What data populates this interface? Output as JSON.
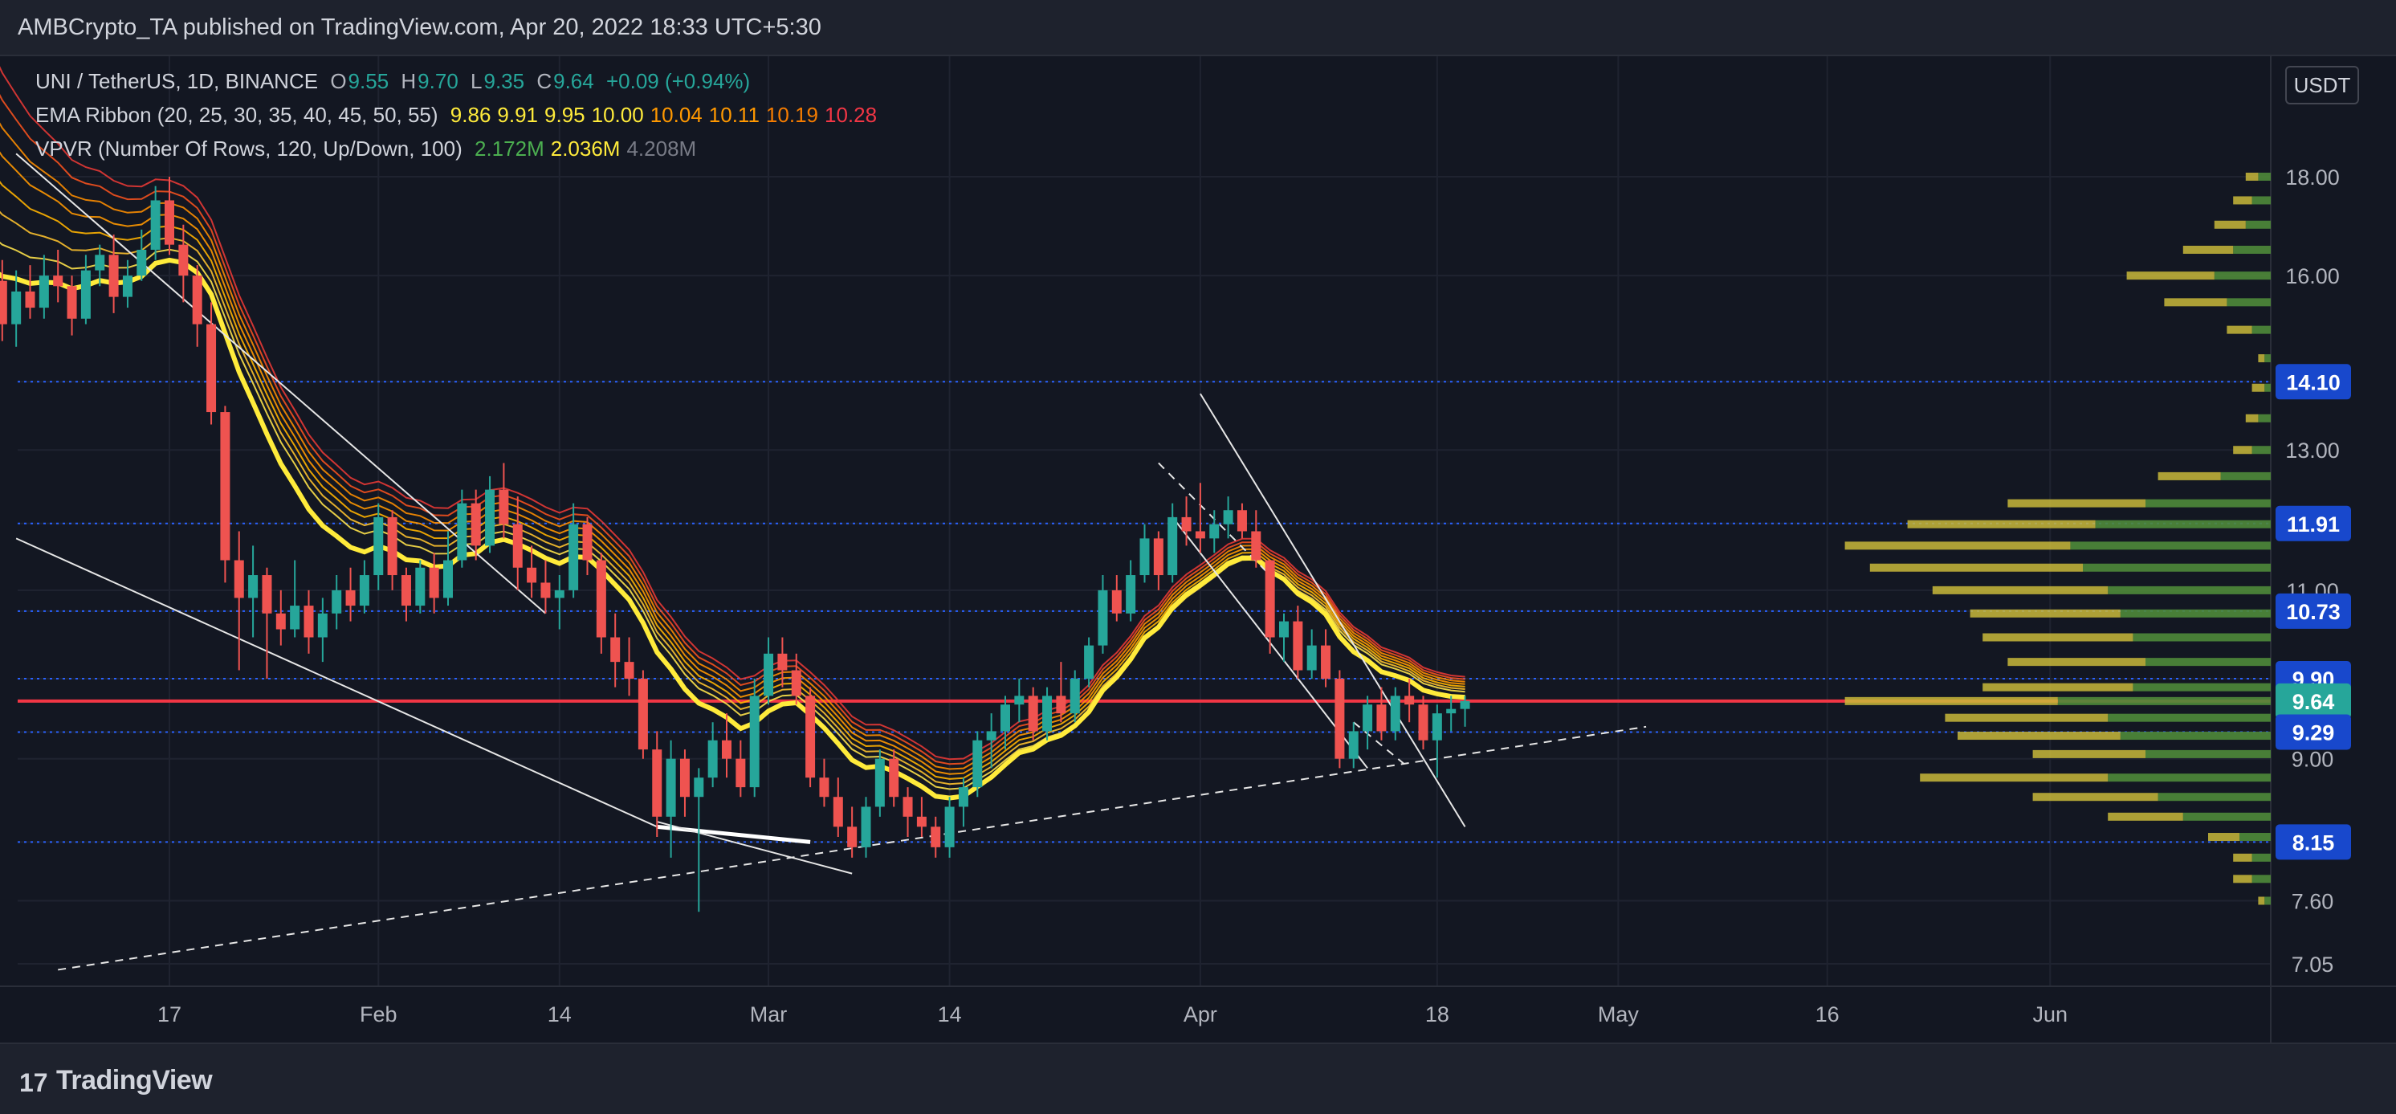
{
  "header": {
    "text": "AMBCrypto_TA published on TradingView.com, Apr 20, 2022 18:33 UTC+5:30"
  },
  "legend": {
    "symbol": "UNI / TetherUS, 1D, BINANCE",
    "ohlc": {
      "O": "9.55",
      "H": "9.70",
      "L": "9.35",
      "C": "9.64",
      "change": "+0.09 (+0.94%)"
    },
    "ema": {
      "label": "EMA Ribbon (20, 25, 30, 35, 40, 45, 50, 55)",
      "values": [
        "9.86",
        "9.91",
        "9.95",
        "10.00",
        "10.04",
        "10.11",
        "10.19",
        "10.28"
      ],
      "colors": [
        "#ffeb3b",
        "#ffeb3b",
        "#ffeb3b",
        "#ffeb3b",
        "#ff9800",
        "#ff9800",
        "#f57c00",
        "#f23645"
      ]
    },
    "vpvr": {
      "label": "VPVR (Number Of Rows, 120, Up/Down, 100)",
      "values": [
        "2.172M",
        "2.036M",
        "4.208M"
      ],
      "colors": [
        "#4caf50",
        "#ffeb3b",
        "#787b86"
      ]
    }
  },
  "currency": "USDT",
  "footer": {
    "logo": "17",
    "brand": "TradingView"
  },
  "chart_data": {
    "type": "candlestick",
    "y_axis": {
      "ticks": [
        "18.00",
        "16.00",
        "14.10",
        "13.00",
        "11.91",
        "11.00",
        "10.73",
        "9.90",
        "9.64",
        "9.29",
        "9.00",
        "8.15",
        "7.60",
        "7.05"
      ],
      "scale": "log",
      "range": [
        6.8,
        19.5
      ]
    },
    "x_axis": {
      "ticks": [
        "17",
        "Feb",
        "14",
        "Mar",
        "14",
        "Apr",
        "18",
        "May",
        "16",
        "Jun"
      ],
      "tick_dates": [
        "2022-01-17",
        "2022-02-01",
        "2022-02-14",
        "2022-03-01",
        "2022-03-14",
        "2022-04-01",
        "2022-04-18",
        "2022-05-01",
        "2022-05-16",
        "2022-06-01"
      ]
    },
    "price_badges": [
      {
        "value": "14.10",
        "color": "#1848cc"
      },
      {
        "value": "11.91",
        "color": "#1848cc"
      },
      {
        "value": "10.73",
        "color": "#1848cc"
      },
      {
        "value": "9.90",
        "color": "#1848cc"
      },
      {
        "value": "9.64",
        "color": "#26a69a"
      },
      {
        "value": "9.29",
        "color": "#1848cc"
      },
      {
        "value": "8.15",
        "color": "#1848cc"
      }
    ],
    "horizontal_levels": [
      {
        "value": 14.1,
        "color": "#2962ff",
        "style": "dotted"
      },
      {
        "value": 11.91,
        "color": "#2962ff",
        "style": "dotted"
      },
      {
        "value": 10.73,
        "color": "#2962ff",
        "style": "dotted"
      },
      {
        "value": 9.9,
        "color": "#2962ff",
        "style": "dotted"
      },
      {
        "value": 9.29,
        "color": "#2962ff",
        "style": "dotted"
      },
      {
        "value": 8.15,
        "color": "#2962ff",
        "style": "dotted"
      },
      {
        "value": 9.64,
        "color": "#f23645",
        "style": "solid"
      }
    ],
    "candles": [
      {
        "date": "2022-01-04",
        "o": 16.2,
        "h": 17.3,
        "l": 15.4,
        "c": 15.9
      },
      {
        "date": "2022-01-05",
        "o": 15.9,
        "h": 16.3,
        "l": 14.8,
        "c": 15.1
      },
      {
        "date": "2022-01-06",
        "o": 15.1,
        "h": 16.1,
        "l": 14.7,
        "c": 15.7
      },
      {
        "date": "2022-01-07",
        "o": 15.7,
        "h": 16.2,
        "l": 15.2,
        "c": 15.4
      },
      {
        "date": "2022-01-08",
        "o": 15.4,
        "h": 16.4,
        "l": 15.2,
        "c": 16.0
      },
      {
        "date": "2022-01-09",
        "o": 16.0,
        "h": 16.5,
        "l": 15.5,
        "c": 15.8
      },
      {
        "date": "2022-01-10",
        "o": 15.8,
        "h": 16.0,
        "l": 14.9,
        "c": 15.2
      },
      {
        "date": "2022-01-11",
        "o": 15.2,
        "h": 16.4,
        "l": 15.1,
        "c": 16.1
      },
      {
        "date": "2022-01-12",
        "o": 16.1,
        "h": 16.6,
        "l": 15.8,
        "c": 16.4
      },
      {
        "date": "2022-01-13",
        "o": 16.4,
        "h": 16.8,
        "l": 15.3,
        "c": 15.6
      },
      {
        "date": "2022-01-14",
        "o": 15.6,
        "h": 16.3,
        "l": 15.4,
        "c": 16.0
      },
      {
        "date": "2022-01-15",
        "o": 16.0,
        "h": 16.9,
        "l": 15.9,
        "c": 16.5
      },
      {
        "date": "2022-01-16",
        "o": 16.5,
        "h": 17.8,
        "l": 16.3,
        "c": 17.5
      },
      {
        "date": "2022-01-17",
        "o": 17.5,
        "h": 18.0,
        "l": 16.4,
        "c": 16.6
      },
      {
        "date": "2022-01-18",
        "o": 16.6,
        "h": 17.0,
        "l": 15.5,
        "c": 16.0
      },
      {
        "date": "2022-01-19",
        "o": 16.0,
        "h": 16.2,
        "l": 14.7,
        "c": 15.1
      },
      {
        "date": "2022-01-20",
        "o": 15.1,
        "h": 15.5,
        "l": 13.4,
        "c": 13.6
      },
      {
        "date": "2022-01-21",
        "o": 13.6,
        "h": 13.7,
        "l": 11.1,
        "c": 11.4
      },
      {
        "date": "2022-01-22",
        "o": 11.4,
        "h": 11.8,
        "l": 10.0,
        "c": 10.9
      },
      {
        "date": "2022-01-23",
        "o": 10.9,
        "h": 11.6,
        "l": 10.4,
        "c": 11.2
      },
      {
        "date": "2022-01-24",
        "o": 11.2,
        "h": 11.3,
        "l": 9.9,
        "c": 10.7
      },
      {
        "date": "2022-01-25",
        "o": 10.7,
        "h": 11.0,
        "l": 10.3,
        "c": 10.5
      },
      {
        "date": "2022-01-26",
        "o": 10.5,
        "h": 11.4,
        "l": 10.4,
        "c": 10.8
      },
      {
        "date": "2022-01-27",
        "o": 10.8,
        "h": 11.0,
        "l": 10.2,
        "c": 10.4
      },
      {
        "date": "2022-01-28",
        "o": 10.4,
        "h": 10.9,
        "l": 10.1,
        "c": 10.7
      },
      {
        "date": "2022-01-29",
        "o": 10.7,
        "h": 11.2,
        "l": 10.5,
        "c": 11.0
      },
      {
        "date": "2022-01-30",
        "o": 11.0,
        "h": 11.3,
        "l": 10.6,
        "c": 10.8
      },
      {
        "date": "2022-01-31",
        "o": 10.8,
        "h": 11.4,
        "l": 10.7,
        "c": 11.2
      },
      {
        "date": "2022-02-01",
        "o": 11.2,
        "h": 12.2,
        "l": 11.0,
        "c": 12.0
      },
      {
        "date": "2022-02-02",
        "o": 12.0,
        "h": 12.1,
        "l": 11.0,
        "c": 11.2
      },
      {
        "date": "2022-02-03",
        "o": 11.2,
        "h": 11.3,
        "l": 10.6,
        "c": 10.8
      },
      {
        "date": "2022-02-04",
        "o": 10.8,
        "h": 11.4,
        "l": 10.7,
        "c": 11.3
      },
      {
        "date": "2022-02-05",
        "o": 11.3,
        "h": 11.5,
        "l": 10.7,
        "c": 10.9
      },
      {
        "date": "2022-02-06",
        "o": 10.9,
        "h": 11.8,
        "l": 10.8,
        "c": 11.4
      },
      {
        "date": "2022-02-07",
        "o": 11.4,
        "h": 12.4,
        "l": 11.3,
        "c": 12.2
      },
      {
        "date": "2022-02-08",
        "o": 12.2,
        "h": 12.4,
        "l": 11.4,
        "c": 11.6
      },
      {
        "date": "2022-02-09",
        "o": 11.6,
        "h": 12.6,
        "l": 11.5,
        "c": 12.4
      },
      {
        "date": "2022-02-10",
        "o": 12.4,
        "h": 12.8,
        "l": 11.7,
        "c": 11.9
      },
      {
        "date": "2022-02-11",
        "o": 11.9,
        "h": 12.3,
        "l": 11.0,
        "c": 11.3
      },
      {
        "date": "2022-02-12",
        "o": 11.3,
        "h": 11.6,
        "l": 10.9,
        "c": 11.1
      },
      {
        "date": "2022-02-13",
        "o": 11.1,
        "h": 11.4,
        "l": 10.7,
        "c": 10.9
      },
      {
        "date": "2022-02-14",
        "o": 10.9,
        "h": 11.2,
        "l": 10.5,
        "c": 11.0
      },
      {
        "date": "2022-02-15",
        "o": 11.0,
        "h": 12.2,
        "l": 10.9,
        "c": 11.9
      },
      {
        "date": "2022-02-16",
        "o": 11.9,
        "h": 12.0,
        "l": 11.2,
        "c": 11.4
      },
      {
        "date": "2022-02-17",
        "o": 11.4,
        "h": 11.5,
        "l": 10.2,
        "c": 10.4
      },
      {
        "date": "2022-02-18",
        "o": 10.4,
        "h": 10.7,
        "l": 9.8,
        "c": 10.1
      },
      {
        "date": "2022-02-19",
        "o": 10.1,
        "h": 10.4,
        "l": 9.7,
        "c": 9.9
      },
      {
        "date": "2022-02-20",
        "o": 9.9,
        "h": 10.0,
        "l": 9.0,
        "c": 9.1
      },
      {
        "date": "2022-02-21",
        "o": 9.1,
        "h": 9.3,
        "l": 8.2,
        "c": 8.4
      },
      {
        "date": "2022-02-22",
        "o": 8.4,
        "h": 9.2,
        "l": 8.0,
        "c": 9.0
      },
      {
        "date": "2022-02-23",
        "o": 9.0,
        "h": 9.1,
        "l": 8.4,
        "c": 8.6
      },
      {
        "date": "2022-02-24",
        "o": 8.6,
        "h": 8.9,
        "l": 7.5,
        "c": 8.8
      },
      {
        "date": "2022-02-25",
        "o": 8.8,
        "h": 9.4,
        "l": 8.7,
        "c": 9.2
      },
      {
        "date": "2022-02-26",
        "o": 9.2,
        "h": 9.5,
        "l": 8.8,
        "c": 9.0
      },
      {
        "date": "2022-02-27",
        "o": 9.0,
        "h": 9.2,
        "l": 8.6,
        "c": 8.7
      },
      {
        "date": "2022-02-28",
        "o": 8.7,
        "h": 9.9,
        "l": 8.6,
        "c": 9.7
      },
      {
        "date": "2022-03-01",
        "o": 9.7,
        "h": 10.4,
        "l": 9.6,
        "c": 10.2
      },
      {
        "date": "2022-03-02",
        "o": 10.2,
        "h": 10.4,
        "l": 9.8,
        "c": 10.0
      },
      {
        "date": "2022-03-03",
        "o": 10.0,
        "h": 10.2,
        "l": 9.6,
        "c": 9.7
      },
      {
        "date": "2022-03-04",
        "o": 9.7,
        "h": 9.8,
        "l": 8.7,
        "c": 8.8
      },
      {
        "date": "2022-03-05",
        "o": 8.8,
        "h": 9.0,
        "l": 8.5,
        "c": 8.6
      },
      {
        "date": "2022-03-06",
        "o": 8.6,
        "h": 8.8,
        "l": 8.2,
        "c": 8.3
      },
      {
        "date": "2022-03-07",
        "o": 8.3,
        "h": 8.5,
        "l": 8.0,
        "c": 8.1
      },
      {
        "date": "2022-03-08",
        "o": 8.1,
        "h": 8.6,
        "l": 8.0,
        "c": 8.5
      },
      {
        "date": "2022-03-09",
        "o": 8.5,
        "h": 9.1,
        "l": 8.4,
        "c": 9.0
      },
      {
        "date": "2022-03-10",
        "o": 9.0,
        "h": 9.1,
        "l": 8.5,
        "c": 8.6
      },
      {
        "date": "2022-03-11",
        "o": 8.6,
        "h": 8.7,
        "l": 8.2,
        "c": 8.4
      },
      {
        "date": "2022-03-12",
        "o": 8.4,
        "h": 8.6,
        "l": 8.2,
        "c": 8.3
      },
      {
        "date": "2022-03-13",
        "o": 8.3,
        "h": 8.4,
        "l": 8.0,
        "c": 8.1
      },
      {
        "date": "2022-03-14",
        "o": 8.1,
        "h": 8.6,
        "l": 8.0,
        "c": 8.5
      },
      {
        "date": "2022-03-15",
        "o": 8.5,
        "h": 8.8,
        "l": 8.3,
        "c": 8.7
      },
      {
        "date": "2022-03-16",
        "o": 8.7,
        "h": 9.3,
        "l": 8.6,
        "c": 9.2
      },
      {
        "date": "2022-03-17",
        "o": 9.2,
        "h": 9.5,
        "l": 8.9,
        "c": 9.3
      },
      {
        "date": "2022-03-18",
        "o": 9.3,
        "h": 9.7,
        "l": 9.1,
        "c": 9.6
      },
      {
        "date": "2022-03-19",
        "o": 9.6,
        "h": 9.9,
        "l": 9.4,
        "c": 9.7
      },
      {
        "date": "2022-03-20",
        "o": 9.7,
        "h": 9.8,
        "l": 9.2,
        "c": 9.3
      },
      {
        "date": "2022-03-21",
        "o": 9.3,
        "h": 9.8,
        "l": 9.2,
        "c": 9.7
      },
      {
        "date": "2022-03-22",
        "o": 9.7,
        "h": 10.1,
        "l": 9.4,
        "c": 9.5
      },
      {
        "date": "2022-03-23",
        "o": 9.5,
        "h": 10.0,
        "l": 9.4,
        "c": 9.9
      },
      {
        "date": "2022-03-24",
        "o": 9.9,
        "h": 10.4,
        "l": 9.8,
        "c": 10.3
      },
      {
        "date": "2022-03-25",
        "o": 10.3,
        "h": 11.2,
        "l": 10.2,
        "c": 11.0
      },
      {
        "date": "2022-03-26",
        "o": 11.0,
        "h": 11.2,
        "l": 10.6,
        "c": 10.7
      },
      {
        "date": "2022-03-27",
        "o": 10.7,
        "h": 11.4,
        "l": 10.6,
        "c": 11.2
      },
      {
        "date": "2022-03-28",
        "o": 11.2,
        "h": 11.9,
        "l": 11.1,
        "c": 11.7
      },
      {
        "date": "2022-03-29",
        "o": 11.7,
        "h": 11.8,
        "l": 11.0,
        "c": 11.2
      },
      {
        "date": "2022-03-30",
        "o": 11.2,
        "h": 12.2,
        "l": 11.1,
        "c": 12.0
      },
      {
        "date": "2022-03-31",
        "o": 12.0,
        "h": 12.3,
        "l": 11.6,
        "c": 11.8
      },
      {
        "date": "2022-04-01",
        "o": 11.8,
        "h": 12.5,
        "l": 11.5,
        "c": 11.7
      },
      {
        "date": "2022-04-02",
        "o": 11.7,
        "h": 12.1,
        "l": 11.5,
        "c": 11.9
      },
      {
        "date": "2022-04-03",
        "o": 11.9,
        "h": 12.3,
        "l": 11.7,
        "c": 12.1
      },
      {
        "date": "2022-04-04",
        "o": 12.1,
        "h": 12.2,
        "l": 11.7,
        "c": 11.8
      },
      {
        "date": "2022-04-05",
        "o": 11.8,
        "h": 12.1,
        "l": 11.3,
        "c": 11.4
      },
      {
        "date": "2022-04-06",
        "o": 11.4,
        "h": 11.4,
        "l": 10.2,
        "c": 10.4
      },
      {
        "date": "2022-04-07",
        "o": 10.4,
        "h": 10.7,
        "l": 10.1,
        "c": 10.6
      },
      {
        "date": "2022-04-08",
        "o": 10.6,
        "h": 10.8,
        "l": 9.9,
        "c": 10.0
      },
      {
        "date": "2022-04-09",
        "o": 10.0,
        "h": 10.5,
        "l": 9.9,
        "c": 10.3
      },
      {
        "date": "2022-04-10",
        "o": 10.3,
        "h": 10.5,
        "l": 9.8,
        "c": 9.9
      },
      {
        "date": "2022-04-11",
        "o": 9.9,
        "h": 10.0,
        "l": 8.9,
        "c": 9.0
      },
      {
        "date": "2022-04-12",
        "o": 9.0,
        "h": 9.4,
        "l": 8.9,
        "c": 9.3
      },
      {
        "date": "2022-04-13",
        "o": 9.3,
        "h": 9.7,
        "l": 9.1,
        "c": 9.6
      },
      {
        "date": "2022-04-14",
        "o": 9.6,
        "h": 9.8,
        "l": 9.2,
        "c": 9.3
      },
      {
        "date": "2022-04-15",
        "o": 9.3,
        "h": 9.8,
        "l": 9.2,
        "c": 9.7
      },
      {
        "date": "2022-04-16",
        "o": 9.7,
        "h": 9.9,
        "l": 9.4,
        "c": 9.6
      },
      {
        "date": "2022-04-17",
        "o": 9.6,
        "h": 9.7,
        "l": 9.1,
        "c": 9.2
      },
      {
        "date": "2022-04-18",
        "o": 9.2,
        "h": 9.6,
        "l": 8.8,
        "c": 9.5
      },
      {
        "date": "2022-04-19",
        "o": 9.5,
        "h": 9.7,
        "l": 9.3,
        "c": 9.55
      },
      {
        "date": "2022-04-20",
        "o": 9.55,
        "h": 9.7,
        "l": 9.35,
        "c": 9.64
      }
    ],
    "vpvr_profile": [
      {
        "price": 18.0,
        "up": 0.02,
        "down": 0.02
      },
      {
        "price": 17.5,
        "up": 0.03,
        "down": 0.03
      },
      {
        "price": 17.0,
        "up": 0.04,
        "down": 0.05
      },
      {
        "price": 16.5,
        "up": 0.06,
        "down": 0.08
      },
      {
        "price": 16.0,
        "up": 0.09,
        "down": 0.14
      },
      {
        "price": 15.5,
        "up": 0.07,
        "down": 0.1
      },
      {
        "price": 15.0,
        "up": 0.03,
        "down": 0.04
      },
      {
        "price": 14.5,
        "up": 0.01,
        "down": 0.01
      },
      {
        "price": 14.0,
        "up": 0.01,
        "down": 0.02
      },
      {
        "price": 13.5,
        "up": 0.02,
        "down": 0.02
      },
      {
        "price": 13.0,
        "up": 0.03,
        "down": 0.03
      },
      {
        "price": 12.6,
        "up": 0.08,
        "down": 0.1
      },
      {
        "price": 12.2,
        "up": 0.2,
        "down": 0.22
      },
      {
        "price": 11.9,
        "up": 0.28,
        "down": 0.3
      },
      {
        "price": 11.6,
        "up": 0.32,
        "down": 0.36
      },
      {
        "price": 11.3,
        "up": 0.3,
        "down": 0.34
      },
      {
        "price": 11.0,
        "up": 0.26,
        "down": 0.28
      },
      {
        "price": 10.7,
        "up": 0.24,
        "down": 0.24
      },
      {
        "price": 10.4,
        "up": 0.22,
        "down": 0.24
      },
      {
        "price": 10.1,
        "up": 0.2,
        "down": 0.22
      },
      {
        "price": 9.8,
        "up": 0.22,
        "down": 0.24
      },
      {
        "price": 9.64,
        "up": 0.34,
        "down": 0.34
      },
      {
        "price": 9.45,
        "up": 0.26,
        "down": 0.26
      },
      {
        "price": 9.25,
        "up": 0.24,
        "down": 0.26
      },
      {
        "price": 9.05,
        "up": 0.2,
        "down": 0.18
      },
      {
        "price": 8.8,
        "up": 0.26,
        "down": 0.3
      },
      {
        "price": 8.6,
        "up": 0.18,
        "down": 0.2
      },
      {
        "price": 8.4,
        "up": 0.14,
        "down": 0.12
      },
      {
        "price": 8.2,
        "up": 0.05,
        "down": 0.05
      },
      {
        "price": 8.0,
        "up": 0.03,
        "down": 0.03
      },
      {
        "price": 7.8,
        "up": 0.03,
        "down": 0.03
      },
      {
        "price": 7.6,
        "up": 0.01,
        "down": 0.01
      }
    ]
  }
}
